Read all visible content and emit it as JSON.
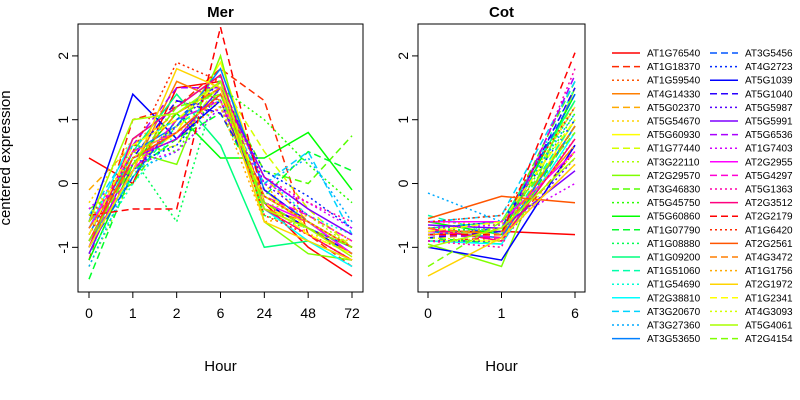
{
  "chart_data": [
    {
      "type": "line",
      "title": "Mer",
      "xlabel": "Hour",
      "ylabel": "centered expression",
      "categories": [
        "0",
        "1",
        "2",
        "6",
        "24",
        "48",
        "72"
      ],
      "yticks": [
        -1,
        0,
        1,
        2
      ],
      "ylim": [
        -1.7,
        2.5
      ],
      "series": [
        {
          "name": "AT1G76540",
          "values": [
            0.4,
            0.0,
            1.5,
            1.6,
            -0.3,
            -1.0,
            -1.45
          ]
        },
        {
          "name": "AT1G18370",
          "values": [
            -1.2,
            1.0,
            1.2,
            1.8,
            1.3,
            -0.8,
            -1.3
          ]
        },
        {
          "name": "AT1G59540",
          "values": [
            -0.8,
            0.3,
            0.9,
            1.7,
            -0.3,
            -0.8,
            -1.1
          ]
        },
        {
          "name": "AT4G14330",
          "values": [
            -0.6,
            0.2,
            1.6,
            1.3,
            -0.4,
            -0.6,
            -1.0
          ]
        },
        {
          "name": "AT5G02370",
          "values": [
            -0.1,
            0.6,
            1.1,
            1.5,
            0.1,
            -0.6,
            -1.0
          ]
        },
        {
          "name": "AT5G54670",
          "values": [
            -0.3,
            0.7,
            1.0,
            1.5,
            0.0,
            -0.8,
            -0.9
          ]
        },
        {
          "name": "AT5G60930",
          "values": [
            -0.7,
            0.3,
            0.8,
            1.9,
            -0.1,
            -0.7,
            -1.1
          ]
        },
        {
          "name": "AT1G77440",
          "values": [
            -1.1,
            0.4,
            0.6,
            1.6,
            0.5,
            -0.4,
            -1.0
          ]
        },
        {
          "name": "AT3G22110",
          "values": [
            -1.3,
            0.1,
            1.3,
            1.2,
            -0.3,
            -0.5,
            -1.0
          ]
        },
        {
          "name": "AT2G29570",
          "values": [
            -1.0,
            0.5,
            0.3,
            2.0,
            -0.6,
            -1.1,
            -1.2
          ]
        },
        {
          "name": "AT3G46830",
          "values": [
            -0.4,
            0.0,
            1.0,
            1.5,
            0.2,
            0.0,
            0.75
          ]
        },
        {
          "name": "AT5G45750",
          "values": [
            -0.8,
            0.6,
            0.5,
            1.5,
            1.0,
            0.3,
            -0.3
          ]
        },
        {
          "name": "AT5G60860",
          "values": [
            -1.2,
            0.3,
            1.1,
            0.4,
            0.4,
            0.8,
            -0.1
          ]
        },
        {
          "name": "AT1G07790",
          "values": [
            -1.5,
            0.2,
            0.7,
            1.1,
            -0.2,
            0.5,
            0.2
          ]
        },
        {
          "name": "AT1G08880",
          "values": [
            -0.6,
            0.4,
            -0.6,
            1.7,
            -0.5,
            -0.7,
            -1.0
          ]
        },
        {
          "name": "AT1G09200",
          "values": [
            -1.0,
            0.5,
            1.4,
            0.6,
            -1.0,
            -0.9,
            -1.2
          ]
        },
        {
          "name": "AT1G51060",
          "values": [
            -0.9,
            0.1,
            0.9,
            1.4,
            -0.2,
            -0.6,
            -1.1
          ]
        },
        {
          "name": "AT1G54690",
          "values": [
            -1.1,
            0.0,
            0.8,
            1.4,
            0.1,
            -0.5,
            -0.8
          ]
        },
        {
          "name": "AT2G38810",
          "values": [
            -0.7,
            0.7,
            1.2,
            1.7,
            -0.4,
            -0.9,
            -1.3
          ]
        },
        {
          "name": "AT3G20670",
          "values": [
            -0.5,
            0.6,
            1.0,
            1.3,
            0.0,
            0.5,
            -0.8
          ]
        },
        {
          "name": "AT3G27360",
          "values": [
            -1.3,
            0.2,
            0.5,
            1.2,
            0.0,
            0.4,
            -0.6
          ]
        },
        {
          "name": "AT3G53650",
          "values": [
            -0.8,
            0.5,
            0.9,
            1.8,
            -0.1,
            -0.6,
            -1.1
          ]
        },
        {
          "name": "AT3G5456",
          "values": [
            -1.0,
            0.1,
            1.0,
            1.6,
            -0.3,
            -0.7,
            -1.0
          ]
        },
        {
          "name": "AT4G2723",
          "values": [
            -0.7,
            0.3,
            0.6,
            1.4,
            0.2,
            -0.2,
            -0.7
          ]
        },
        {
          "name": "AT5G1039",
          "values": [
            -0.6,
            1.4,
            0.7,
            1.3,
            -0.3,
            -0.7,
            -1.1
          ]
        },
        {
          "name": "AT5G1040",
          "values": [
            -0.9,
            0.4,
            1.3,
            1.1,
            -0.1,
            -0.6,
            -1.0
          ]
        },
        {
          "name": "AT5G5987",
          "values": [
            -0.5,
            0.2,
            0.9,
            1.6,
            0.0,
            -0.5,
            -0.9
          ]
        },
        {
          "name": "AT5G5991",
          "values": [
            -1.1,
            0.4,
            0.7,
            1.5,
            0.1,
            -0.4,
            -0.8
          ]
        },
        {
          "name": "AT5G6536",
          "values": [
            -0.8,
            0.6,
            1.5,
            1.5,
            -0.2,
            -0.6,
            -1.0
          ]
        },
        {
          "name": "AT1G7403",
          "values": [
            -0.4,
            0.3,
            0.5,
            1.2,
            0.0,
            -0.3,
            -0.7
          ]
        },
        {
          "name": "AT2G2955",
          "values": [
            -0.7,
            0.5,
            0.8,
            1.4,
            -0.3,
            -0.6,
            -1.1
          ]
        },
        {
          "name": "AT5G4297",
          "values": [
            -0.9,
            0.2,
            1.0,
            1.3,
            -0.2,
            -0.5,
            -0.9
          ]
        },
        {
          "name": "AT5G1363",
          "values": [
            -0.6,
            0.4,
            0.7,
            1.4,
            0.1,
            -0.3,
            -0.6
          ]
        },
        {
          "name": "AT2G3512",
          "values": [
            -1.0,
            0.7,
            1.2,
            1.7,
            -0.4,
            -0.8,
            -1.2
          ]
        },
        {
          "name": "AT2G2179",
          "values": [
            -0.5,
            -0.4,
            -0.4,
            2.45,
            -0.3,
            -0.7,
            -1.0
          ]
        },
        {
          "name": "AT1G6420",
          "values": [
            -0.8,
            0.5,
            1.9,
            1.6,
            -0.5,
            -0.8,
            -1.2
          ]
        },
        {
          "name": "AT2G2561",
          "values": [
            -0.9,
            0.4,
            0.8,
            1.4,
            -0.2,
            -0.6,
            -1.0
          ]
        },
        {
          "name": "AT4G3472",
          "values": [
            -0.7,
            0.3,
            1.1,
            1.5,
            -0.4,
            -0.7,
            -1.1
          ]
        },
        {
          "name": "AT1G1756",
          "values": [
            -0.6,
            0.5,
            0.8,
            1.2,
            -0.6,
            -0.5,
            -0.9
          ]
        },
        {
          "name": "AT2G1972",
          "values": [
            -1.0,
            0.2,
            1.8,
            1.5,
            -0.6,
            -0.9,
            -1.2
          ]
        },
        {
          "name": "AT1G2341",
          "values": [
            -0.8,
            0.6,
            1.0,
            1.6,
            -0.3,
            -0.8,
            -1.1
          ]
        },
        {
          "name": "AT4G3093",
          "values": [
            -0.5,
            0.4,
            0.9,
            1.3,
            -0.2,
            -0.6,
            -1.0
          ]
        },
        {
          "name": "AT5G4061",
          "values": [
            -0.6,
            1.0,
            1.1,
            1.6,
            -0.4,
            -0.7,
            -1.15
          ]
        },
        {
          "name": "AT2G4154",
          "values": [
            -0.9,
            0.3,
            1.2,
            1.4,
            -0.3,
            -0.7,
            -1.0
          ]
        }
      ]
    },
    {
      "type": "line",
      "title": "Cot",
      "xlabel": "Hour",
      "ylabel": "",
      "categories": [
        "0",
        "1",
        "6"
      ],
      "yticks": [
        -1,
        0,
        1,
        2
      ],
      "ylim": [
        -1.7,
        2.5
      ],
      "series": [
        {
          "name": "AT1G76540",
          "values": [
            -0.75,
            -0.75,
            -0.8
          ]
        },
        {
          "name": "AT1G18370",
          "values": [
            -0.9,
            -0.85,
            0.5
          ]
        },
        {
          "name": "AT1G59540",
          "values": [
            -0.7,
            -0.6,
            0.8
          ]
        },
        {
          "name": "AT4G14330",
          "values": [
            -0.8,
            -0.75,
            0.6
          ]
        },
        {
          "name": "AT5G02370",
          "values": [
            -0.85,
            -0.8,
            0.9
          ]
        },
        {
          "name": "AT5G54670",
          "values": [
            -0.6,
            -0.65,
            1.2
          ]
        },
        {
          "name": "AT5G60930",
          "values": [
            -0.9,
            -0.9,
            1.0
          ]
        },
        {
          "name": "AT1G77440",
          "values": [
            -0.7,
            -0.85,
            1.3
          ]
        },
        {
          "name": "AT3G22110",
          "values": [
            -0.75,
            -0.7,
            0.7
          ]
        },
        {
          "name": "AT2G29570",
          "values": [
            -0.95,
            -1.3,
            1.5
          ]
        },
        {
          "name": "AT3G46830",
          "values": [
            -0.8,
            -0.7,
            1.6
          ]
        },
        {
          "name": "AT5G45750",
          "values": [
            -0.7,
            -0.75,
            1.1
          ]
        },
        {
          "name": "AT5G60860",
          "values": [
            -0.6,
            -0.8,
            1.4
          ]
        },
        {
          "name": "AT1G07790",
          "values": [
            -0.85,
            -0.95,
            0.9
          ]
        },
        {
          "name": "AT1G08880",
          "values": [
            -0.75,
            -0.7,
            1.2
          ]
        },
        {
          "name": "AT1G09200",
          "values": [
            -0.7,
            -0.6,
            1.3
          ]
        },
        {
          "name": "AT1G51060",
          "values": [
            -0.5,
            -0.8,
            1.0
          ]
        },
        {
          "name": "AT1G54690",
          "values": [
            -0.8,
            -0.7,
            1.5
          ]
        },
        {
          "name": "AT2G38810",
          "values": [
            -0.9,
            -0.95,
            0.8
          ]
        },
        {
          "name": "AT3G20670",
          "values": [
            -0.6,
            -0.5,
            1.6
          ]
        },
        {
          "name": "AT3G27360",
          "values": [
            -0.15,
            -0.6,
            1.1
          ]
        },
        {
          "name": "AT3G53650",
          "values": [
            -0.75,
            -0.85,
            0.9
          ]
        },
        {
          "name": "AT3G5456",
          "values": [
            -0.8,
            -0.7,
            1.4
          ]
        },
        {
          "name": "AT4G2723",
          "values": [
            -0.7,
            -0.6,
            1.0
          ]
        },
        {
          "name": "AT5G1039",
          "values": [
            -1.0,
            -1.2,
            0.6
          ]
        },
        {
          "name": "AT5G1040",
          "values": [
            -0.85,
            -0.75,
            1.5
          ]
        },
        {
          "name": "AT5G5987",
          "values": [
            -0.9,
            -0.9,
            0.4
          ]
        },
        {
          "name": "AT5G5991",
          "values": [
            -0.65,
            -0.7,
            0.2
          ]
        },
        {
          "name": "AT5G6536",
          "values": [
            -0.8,
            -0.85,
            1.7
          ]
        },
        {
          "name": "AT1G7403",
          "values": [
            -0.7,
            -0.65,
            0.0
          ]
        },
        {
          "name": "AT2G2955",
          "values": [
            -0.6,
            -0.6,
            0.5
          ]
        },
        {
          "name": "AT5G4297",
          "values": [
            -0.75,
            -0.85,
            0.3
          ]
        },
        {
          "name": "AT5G1363",
          "values": [
            -0.9,
            -1.0,
            1.8
          ]
        },
        {
          "name": "AT2G3512",
          "values": [
            -0.7,
            -0.9,
            0.7
          ]
        },
        {
          "name": "AT2G2179",
          "values": [
            -0.8,
            -0.8,
            2.05
          ]
        },
        {
          "name": "AT1G6420",
          "values": [
            -0.6,
            -0.5,
            1.2
          ]
        },
        {
          "name": "AT2G2561",
          "values": [
            -0.55,
            -0.2,
            -0.3
          ]
        },
        {
          "name": "AT4G3472",
          "values": [
            -0.7,
            -0.8,
            0.9
          ]
        },
        {
          "name": "AT1G1756",
          "values": [
            -0.8,
            -0.7,
            0.6
          ]
        },
        {
          "name": "AT2G1972",
          "values": [
            -1.45,
            -0.85,
            0.3
          ]
        },
        {
          "name": "AT1G2341",
          "values": [
            -0.75,
            -0.6,
            1.0
          ]
        },
        {
          "name": "AT4G3093",
          "values": [
            -0.85,
            -0.9,
            0.5
          ]
        },
        {
          "name": "AT5G4061",
          "values": [
            -1.0,
            -0.7,
            0.4
          ]
        },
        {
          "name": "AT2G4154",
          "values": [
            -1.3,
            -0.6,
            0.8
          ]
        }
      ]
    }
  ],
  "legend": {
    "placement": "right",
    "styles": {
      "colors": [
        "#ff0000",
        "#ff2a00",
        "#ff5500",
        "#ff7f00",
        "#ffaa00",
        "#ffd400",
        "#ffff00",
        "#d4ff00",
        "#aaff00",
        "#7fff00",
        "#55ff00",
        "#2aff00",
        "#00ff00",
        "#00ff2a",
        "#00ff55",
        "#00ff7f",
        "#00ffaa",
        "#00ffd4",
        "#00ffff",
        "#00d4ff",
        "#00aaff",
        "#007fff",
        "#0055ff",
        "#002aff",
        "#0000ff",
        "#2a00ff",
        "#5500ff",
        "#7f00ff",
        "#aa00ff",
        "#d400ff",
        "#ff00ff",
        "#ff00d4",
        "#ff00aa",
        "#ff007f"
      ],
      "linetypes": [
        "solid",
        "dashed",
        "dotted"
      ]
    }
  }
}
